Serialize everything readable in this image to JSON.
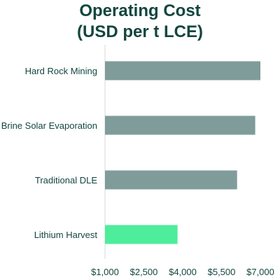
{
  "chart_data": {
    "type": "bar",
    "orientation": "horizontal",
    "title_lines": [
      "Operating Cost",
      "(USD per t LCE)"
    ],
    "categories": [
      "Hard Rock Mining",
      "Brine Solar Evaporation",
      "Traditional DLE",
      "Lithium Harvest"
    ],
    "values": [
      7000,
      6800,
      6100,
      3800
    ],
    "xticks": [
      "$1,000",
      "$2,500",
      "$4,000",
      "$5,500",
      "$7,000"
    ],
    "xtick_values": [
      1000,
      2500,
      4000,
      5500,
      7000
    ],
    "xlim": [
      1000,
      7000
    ],
    "xlabel": "",
    "ylabel": "",
    "grid": false,
    "colors": {
      "default_bar": "#7f9c9a",
      "highlight_bar": "#4ded9b",
      "text": "#12463f",
      "axis_line": "#d9d9d9"
    },
    "highlight_category": "Lithium Harvest"
  }
}
